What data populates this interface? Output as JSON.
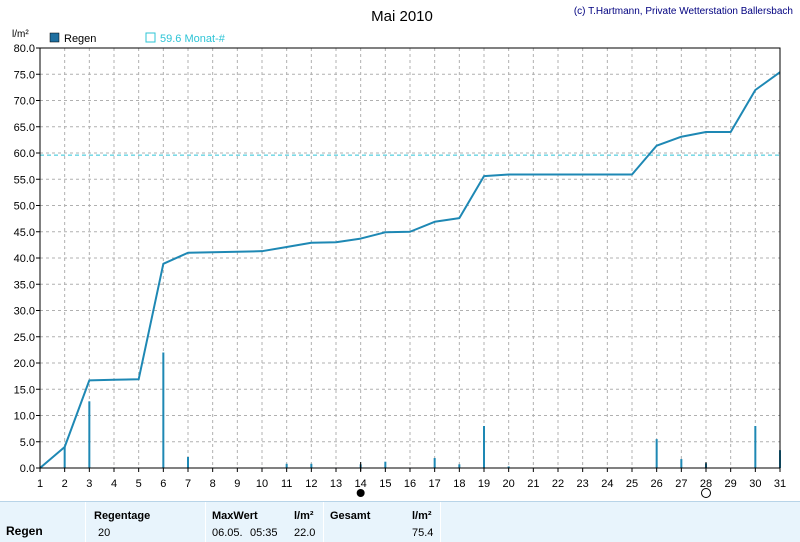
{
  "header": {
    "title": "Mai 2010",
    "copyright": "(c) T.Hartmann, Private Wetterstation Ballersbach",
    "unit": "l/m²"
  },
  "legend": {
    "series_label": "Regen",
    "reference_label": "59.6 Monat-#"
  },
  "chart_data": {
    "type": "line",
    "title": "Mai 2010",
    "ylabel": "l/m²",
    "xlabel": "",
    "x": [
      1,
      2,
      3,
      4,
      5,
      6,
      7,
      8,
      9,
      10,
      11,
      12,
      13,
      14,
      15,
      16,
      17,
      18,
      19,
      20,
      21,
      22,
      23,
      24,
      25,
      26,
      27,
      28,
      29,
      30,
      31
    ],
    "xlim": [
      1,
      31
    ],
    "ylim": [
      0,
      80
    ],
    "yticks": [
      0,
      5,
      10,
      15,
      20,
      25,
      30,
      35,
      40,
      45,
      50,
      55,
      60,
      65,
      70,
      75,
      80
    ],
    "grid": true,
    "series": [
      {
        "name": "Regen",
        "kind": "line",
        "color": "#1e88b4",
        "values": [
          0.0,
          4.0,
          16.7,
          16.8,
          16.9,
          38.9,
          41.0,
          41.1,
          41.2,
          41.3,
          42.1,
          42.9,
          43.0,
          43.7,
          44.9,
          45.0,
          46.9,
          47.6,
          55.6,
          55.9,
          55.9,
          55.9,
          55.9,
          55.9,
          55.9,
          61.4,
          63.1,
          64.0,
          64.0,
          72.0,
          75.4
        ]
      },
      {
        "name": "Regen",
        "kind": "bar",
        "color": "#1e88b4",
        "values": [
          0.0,
          4.0,
          12.7,
          0.1,
          0.1,
          22.0,
          2.1,
          0.1,
          0.1,
          0.1,
          0.8,
          0.8,
          0.1,
          0.7,
          1.2,
          0.1,
          1.9,
          0.7,
          8.0,
          0.3,
          0.0,
          0.0,
          0.0,
          0.0,
          0.0,
          5.5,
          1.7,
          0.9,
          0.0,
          8.0,
          3.4
        ]
      }
    ],
    "reference_line": {
      "value": 59.6,
      "label": "59.6 Monat-#",
      "color": "#2ec4d6"
    },
    "markers": [
      {
        "day": 14,
        "kind": "full-moon"
      },
      {
        "day": 28,
        "kind": "new-moon"
      }
    ]
  },
  "stats": {
    "row_label": "Regen",
    "regentage_header": "Regentage",
    "regentage_value": "20",
    "maxwert_header": "MaxWert",
    "maxwert_unit": "l/m²",
    "maxwert_date": "06.05.",
    "maxwert_time": "05:35",
    "maxwert_value": "22.0",
    "gesamt_header": "Gesamt",
    "gesamt_unit": "l/m²",
    "gesamt_value": "75.4"
  },
  "colors": {
    "line": "#1e88b4",
    "reference": "#2ec4d6",
    "grid": "#b0b0b0",
    "panel": "#e8f4fc"
  }
}
